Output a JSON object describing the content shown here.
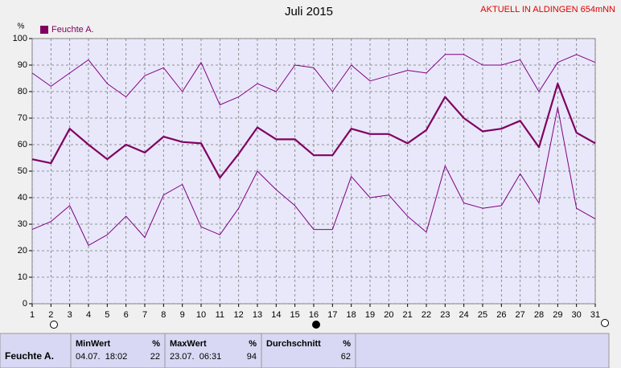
{
  "chart_data": {
    "type": "line",
    "title": "Juli 2015",
    "annotation": "AKTUELL IN ALDINGEN 654mNN",
    "ylabel": "%",
    "x": [
      1,
      2,
      3,
      4,
      5,
      6,
      7,
      8,
      9,
      10,
      11,
      12,
      13,
      14,
      15,
      16,
      17,
      18,
      19,
      20,
      21,
      22,
      23,
      24,
      25,
      26,
      27,
      28,
      29,
      30,
      31
    ],
    "series": [
      {
        "color": "#800080",
        "linewidth": 1,
        "values": [
          87,
          82,
          87,
          92,
          83,
          78,
          86,
          89,
          80,
          91,
          75,
          78,
          83,
          80,
          90,
          89,
          80,
          90,
          84,
          86,
          88,
          87,
          94,
          94,
          90,
          90,
          92,
          80,
          91,
          94,
          91
        ]
      },
      {
        "name": "Feuchte A.",
        "color": "#800060",
        "linewidth": 2.2,
        "values": [
          54.5,
          53,
          66,
          60,
          54.5,
          60,
          57,
          63,
          61,
          60.5,
          47.5,
          56.5,
          66.5,
          62,
          62,
          56,
          56,
          66,
          64,
          64,
          60.5,
          65.5,
          78,
          70,
          65,
          66,
          69,
          59,
          83,
          64.5,
          60.5
        ]
      },
      {
        "color": "#800080",
        "linewidth": 1,
        "values": [
          28,
          31,
          37,
          22,
          26,
          33,
          25,
          41,
          45,
          29,
          26,
          36,
          50,
          43,
          37,
          28,
          28,
          48,
          40,
          41,
          33,
          27,
          52,
          38,
          36,
          37,
          49,
          38,
          74,
          36,
          32
        ]
      }
    ],
    "xlim": [
      1,
      31
    ],
    "xticks": [
      1,
      2,
      3,
      4,
      5,
      6,
      7,
      8,
      9,
      10,
      11,
      12,
      13,
      14,
      15,
      16,
      17,
      18,
      19,
      20,
      21,
      22,
      23,
      24,
      25,
      26,
      27,
      28,
      29,
      30,
      31
    ],
    "ylim": [
      0,
      100
    ],
    "yticks": [
      0,
      10,
      20,
      30,
      40,
      50,
      60,
      70,
      80,
      90,
      100
    ],
    "grid": true,
    "legend": "top-left"
  },
  "table": {
    "row_label": "Feuchte A.",
    "columns": [
      {
        "title": "MinWert",
        "unit": "%",
        "time": "04.07.  18:02",
        "value": "22"
      },
      {
        "title": "MaxWert",
        "unit": "%",
        "time": "23.07.  06:31",
        "value": "94"
      },
      {
        "title": "Durchschnitt",
        "unit": "%",
        "value": "62"
      }
    ]
  }
}
